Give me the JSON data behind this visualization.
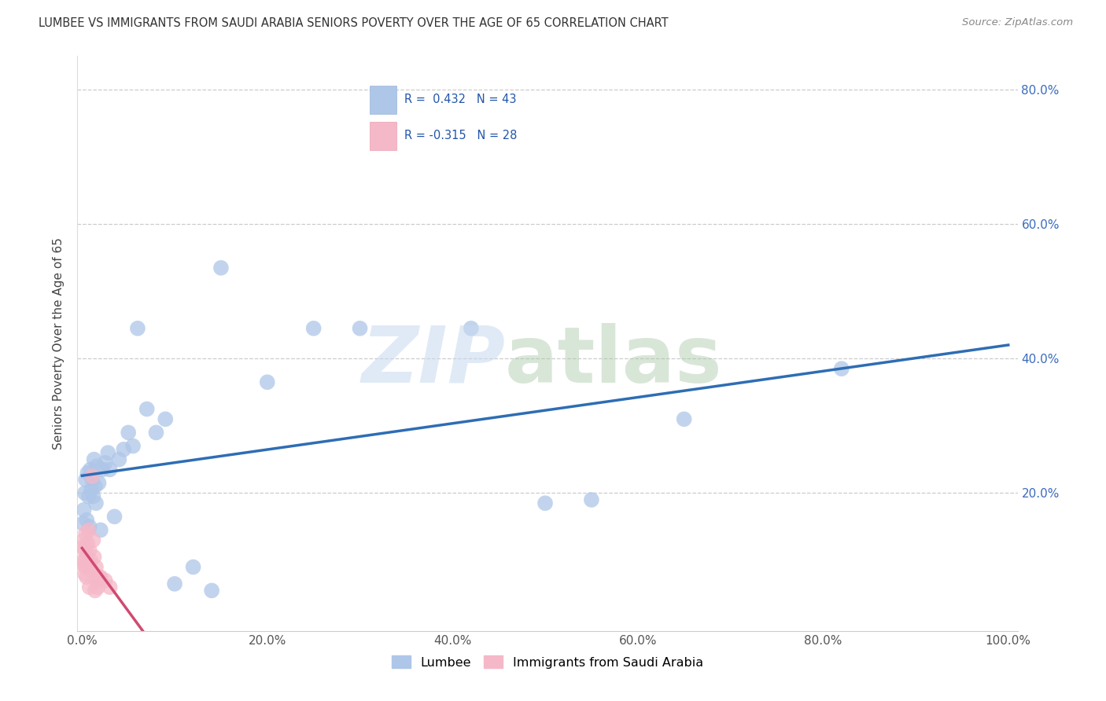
{
  "title": "LUMBEE VS IMMIGRANTS FROM SAUDI ARABIA SENIORS POVERTY OVER THE AGE OF 65 CORRELATION CHART",
  "source": "Source: ZipAtlas.com",
  "ylabel": "Seniors Poverty Over the Age of 65",
  "lumbee_R": 0.432,
  "lumbee_N": 43,
  "saudi_R": -0.315,
  "saudi_N": 28,
  "lumbee_color": "#aec6e8",
  "saudi_color": "#f5b8c8",
  "lumbee_line_color": "#2e6db4",
  "saudi_line_color": "#d04a70",
  "lumbee_x": [
    0.001,
    0.002,
    0.003,
    0.004,
    0.005,
    0.006,
    0.007,
    0.008,
    0.009,
    0.01,
    0.011,
    0.012,
    0.013,
    0.014,
    0.015,
    0.016,
    0.018,
    0.02,
    0.022,
    0.025,
    0.028,
    0.03,
    0.035,
    0.04,
    0.045,
    0.05,
    0.055,
    0.06,
    0.07,
    0.08,
    0.09,
    0.1,
    0.12,
    0.14,
    0.15,
    0.2,
    0.25,
    0.3,
    0.42,
    0.5,
    0.55,
    0.65,
    0.82
  ],
  "lumbee_y": [
    0.155,
    0.175,
    0.2,
    0.22,
    0.16,
    0.23,
    0.195,
    0.15,
    0.235,
    0.205,
    0.22,
    0.195,
    0.25,
    0.21,
    0.185,
    0.24,
    0.215,
    0.145,
    0.235,
    0.245,
    0.26,
    0.235,
    0.165,
    0.25,
    0.265,
    0.29,
    0.27,
    0.445,
    0.325,
    0.29,
    0.31,
    0.065,
    0.09,
    0.055,
    0.535,
    0.365,
    0.445,
    0.445,
    0.445,
    0.185,
    0.19,
    0.31,
    0.385
  ],
  "saudi_x": [
    0.001,
    0.001,
    0.002,
    0.002,
    0.003,
    0.003,
    0.004,
    0.004,
    0.005,
    0.005,
    0.006,
    0.007,
    0.007,
    0.008,
    0.008,
    0.009,
    0.01,
    0.011,
    0.012,
    0.013,
    0.014,
    0.015,
    0.016,
    0.017,
    0.018,
    0.02,
    0.025,
    0.03
  ],
  "saudi_y": [
    0.12,
    0.095,
    0.13,
    0.1,
    0.115,
    0.08,
    0.14,
    0.09,
    0.105,
    0.075,
    0.125,
    0.095,
    0.145,
    0.115,
    0.06,
    0.1,
    0.085,
    0.225,
    0.13,
    0.105,
    0.055,
    0.09,
    0.07,
    0.06,
    0.075,
    0.075,
    0.07,
    0.06
  ],
  "xlim": [
    0,
    1.0
  ],
  "ylim": [
    0,
    0.85
  ],
  "xticks": [
    0.0,
    0.2,
    0.4,
    0.6,
    0.8,
    1.0
  ],
  "xtick_labels": [
    "0.0%",
    "20.0%",
    "40.0%",
    "60.0%",
    "80.0%",
    "100.0%"
  ],
  "yticks": [
    0.2,
    0.4,
    0.6,
    0.8
  ],
  "ytick_labels": [
    "20.0%",
    "40.0%",
    "60.0%",
    "80.0%"
  ]
}
